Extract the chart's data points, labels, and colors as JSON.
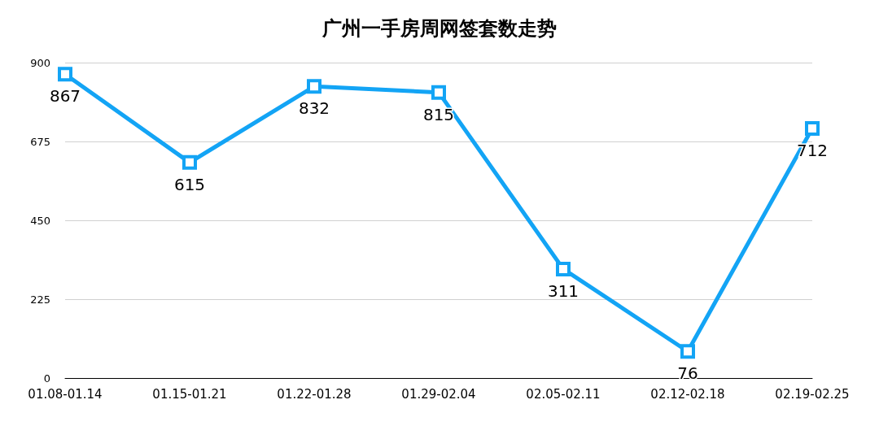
{
  "chart_data": {
    "type": "line",
    "title": "广州一手房周网签套数走势",
    "categories": [
      "01.08-01.14",
      "01.15-01.21",
      "01.22-01.28",
      "01.29-02.04",
      "02.05-02.11",
      "02.12-02.18",
      "02.19-02.25"
    ],
    "series": [
      {
        "color": "#13a4f5",
        "values": [
          867,
          615,
          832,
          815,
          311,
          76,
          712
        ]
      }
    ],
    "ylim": [
      0,
      900
    ],
    "yticks": [
      0,
      225,
      450,
      675,
      900
    ],
    "grid": "y",
    "marker": "square",
    "line_style": "solid",
    "data_labels": true
  }
}
